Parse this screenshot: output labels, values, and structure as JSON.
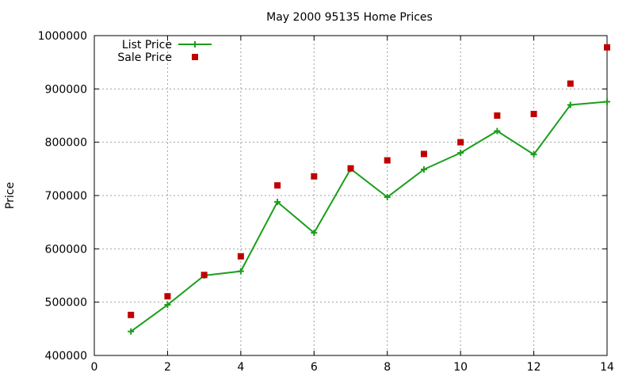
{
  "chart_data": {
    "type": "line",
    "title": "May 2000 95135 Home Prices",
    "xlabel": "",
    "ylabel": "Price",
    "xlim": [
      0,
      14
    ],
    "ylim": [
      400000,
      1000000
    ],
    "xticks": [
      0,
      2,
      4,
      6,
      8,
      10,
      12,
      14
    ],
    "yticks": [
      400000,
      500000,
      600000,
      700000,
      800000,
      900000,
      1000000
    ],
    "grid": true,
    "legend_position": "top-left",
    "series": [
      {
        "name": "List Price",
        "style": "line-with-plus-markers",
        "color": "#1a9e1a",
        "x": [
          1,
          2,
          3,
          4,
          5,
          6,
          7,
          8,
          9,
          10,
          11,
          12,
          13,
          14
        ],
        "y": [
          445000,
          495000,
          550000,
          558000,
          688000,
          630000,
          750000,
          697000,
          749000,
          780000,
          821000,
          777000,
          870000,
          876000
        ]
      },
      {
        "name": "Sale Price",
        "style": "square-points",
        "color": "#c00000",
        "x": [
          1,
          2,
          3,
          4,
          5,
          6,
          7,
          8,
          9,
          10,
          11,
          12,
          13,
          14
        ],
        "y": [
          476000,
          511000,
          551000,
          586000,
          719000,
          736000,
          751000,
          766000,
          778000,
          800000,
          850000,
          853000,
          910000,
          978000
        ]
      }
    ]
  }
}
